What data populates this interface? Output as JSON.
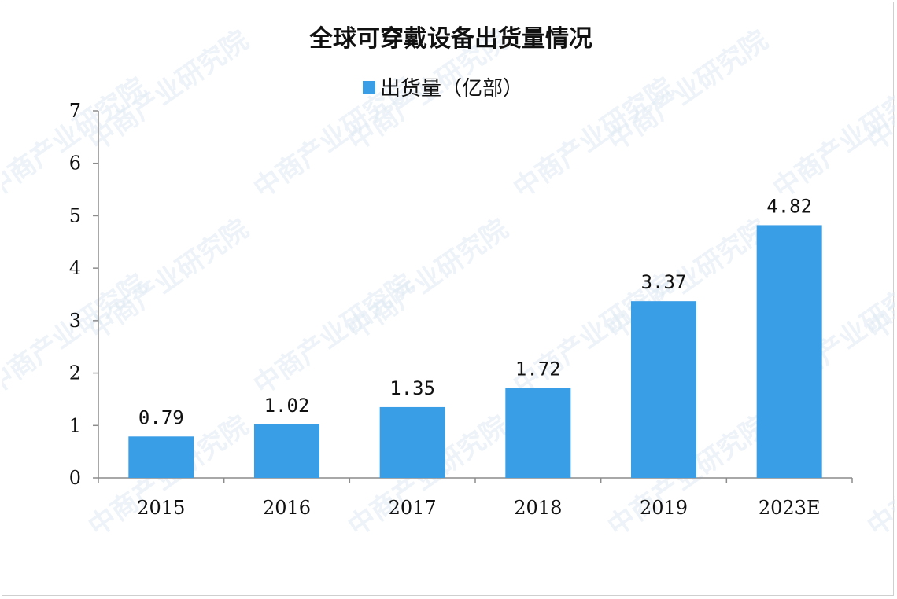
{
  "chart_data": {
    "type": "bar",
    "title": "全球可穿戴设备出货量情况",
    "categories": [
      "2015",
      "2016",
      "2017",
      "2018",
      "2019",
      "2023E"
    ],
    "series": [
      {
        "name": "出货量（亿部）",
        "values": [
          0.79,
          1.02,
          1.35,
          1.72,
          3.37,
          4.82
        ],
        "color": "#3a9ee6"
      }
    ],
    "data_labels": [
      "0.79",
      "1.02",
      "1.35",
      "1.72",
      "3.37",
      "4.82"
    ],
    "yticks": [
      "0",
      "1",
      "2",
      "3",
      "4",
      "5",
      "6",
      "7"
    ],
    "ylim": [
      0,
      7
    ],
    "grid": false,
    "legend_position": "top-center",
    "xlabel": "",
    "ylabel": ""
  },
  "watermark": "中商产业研究院"
}
